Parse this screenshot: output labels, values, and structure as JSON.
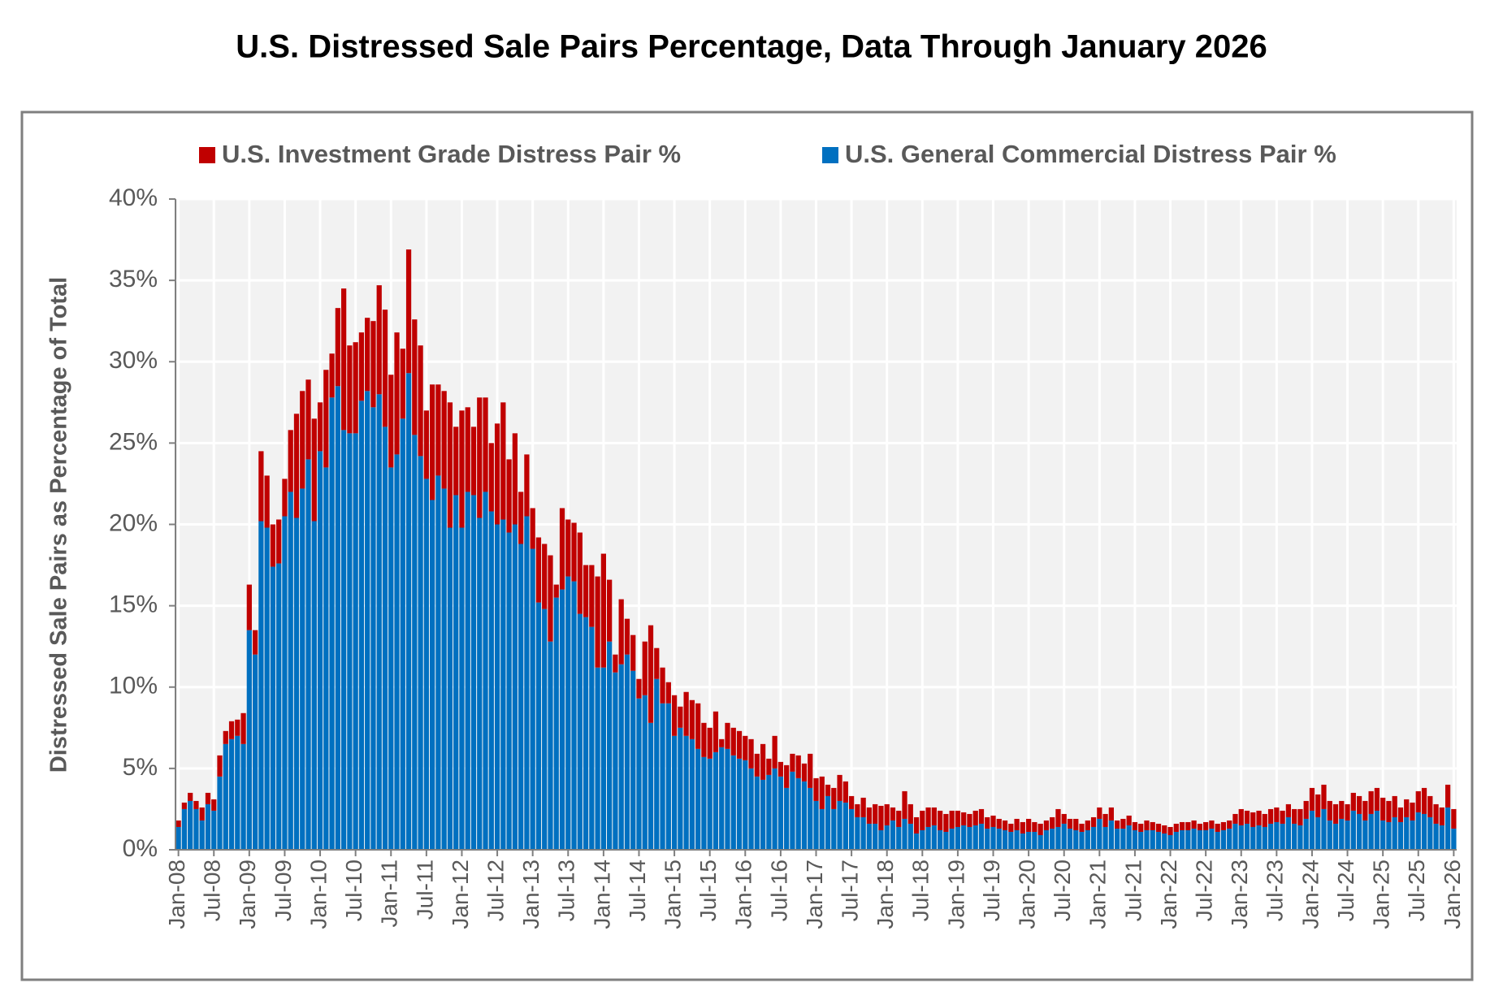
{
  "chart_data": {
    "type": "stacked_bar",
    "title": "U.S. Distressed Sale Pairs Percentage, Data Through January 2026",
    "y_label": "Distressed Sale Pairs as Percentage of Total",
    "categories": [
      "Jan-08",
      null,
      null,
      null,
      null,
      null,
      "Jul-08",
      null,
      null,
      null,
      null,
      null,
      "Jan-09",
      null,
      null,
      null,
      null,
      null,
      "Jul-09",
      null,
      null,
      null,
      null,
      null,
      "Jan-10",
      null,
      null,
      null,
      null,
      null,
      "Jul-10",
      null,
      null,
      null,
      null,
      null,
      "Jan-11",
      null,
      null,
      null,
      null,
      null,
      "Jul-11",
      null,
      null,
      null,
      null,
      null,
      "Jan-12",
      null,
      null,
      null,
      null,
      null,
      "Jul-12",
      null,
      null,
      null,
      null,
      null,
      "Jan-13",
      null,
      null,
      null,
      null,
      null,
      "Jul-13",
      null,
      null,
      null,
      null,
      null,
      "Jan-14",
      null,
      null,
      null,
      null,
      null,
      "Jul-14",
      null,
      null,
      null,
      null,
      null,
      "Jan-15",
      null,
      null,
      null,
      null,
      null,
      "Jul-15",
      null,
      null,
      null,
      null,
      null,
      "Jan-16",
      null,
      null,
      null,
      null,
      null,
      "Jul-16",
      null,
      null,
      null,
      null,
      null,
      "Jan-17",
      null,
      null,
      null,
      null,
      null,
      "Jul-17",
      null,
      null,
      null,
      null,
      null,
      "Jan-18",
      null,
      null,
      null,
      null,
      null,
      "Jul-18",
      null,
      null,
      null,
      null,
      null,
      "Jan-19",
      null,
      null,
      null,
      null,
      null,
      "Jul-19",
      null,
      null,
      null,
      null,
      null,
      "Jan-20",
      null,
      null,
      null,
      null,
      null,
      "Jul-20",
      null,
      null,
      null,
      null,
      null,
      "Jan-21",
      null,
      null,
      null,
      null,
      null,
      "Jul-21",
      null,
      null,
      null,
      null,
      null,
      "Jan-22",
      null,
      null,
      null,
      null,
      null,
      "Jul-22",
      null,
      null,
      null,
      null,
      null,
      "Jan-23",
      null,
      null,
      null,
      null,
      null,
      "Jul-23",
      null,
      null,
      null,
      null,
      null,
      "Jan-24",
      null,
      null,
      null,
      null,
      null,
      "Jul-24",
      null,
      null,
      null,
      null,
      null,
      "Jan-25",
      null,
      null,
      null,
      null,
      null,
      "Jul-25",
      null,
      null,
      null,
      null,
      null,
      "Jan-26"
    ],
    "series": [
      {
        "name": "U.S. Investment Grade Distress Pair %",
        "color": "#c00000",
        "values": [
          0.4,
          0.4,
          0.5,
          0.5,
          0.8,
          0.7,
          0.7,
          1.3,
          0.8,
          1.1,
          1.0,
          1.9,
          2.8,
          1.5,
          4.3,
          3.2,
          2.6,
          2.7,
          2.3,
          3.8,
          6.4,
          6.0,
          4.9,
          6.3,
          3.0,
          6.0,
          2.7,
          4.8,
          8.7,
          5.4,
          5.6,
          4.2,
          4.5,
          5.3,
          6.7,
          7.2,
          5.7,
          7.5,
          4.3,
          7.6,
          7.1,
          6.8,
          4.2,
          7.1,
          5.6,
          6.0,
          7.7,
          4.2,
          7.2,
          5.2,
          4.2,
          7.4,
          5.8,
          4.2,
          6.2,
          7.2,
          4.5,
          5.6,
          3.2,
          3.8,
          2.5,
          4.0,
          4.0,
          5.3,
          0.8,
          5.0,
          3.5,
          3.6,
          5.0,
          3.2,
          3.8,
          5.6,
          7.0,
          3.8,
          1.1,
          4.0,
          2.2,
          2.2,
          1.2,
          3.3,
          6.0,
          1.9,
          2.2,
          1.3,
          2.5,
          1.3,
          2.7,
          2.4,
          2.8,
          2.1,
          1.9,
          2.5,
          0.5,
          1.6,
          1.7,
          1.7,
          1.5,
          1.8,
          1.4,
          2.2,
          1.0,
          2.0,
          0.9,
          1.4,
          1.1,
          1.4,
          1.1,
          2.1,
          1.4,
          2.0,
          0.7,
          1.3,
          1.6,
          1.3,
          0.8,
          0.8,
          1.2,
          1.0,
          1.2,
          1.5,
          1.3,
          0.8,
          1.0,
          1.7,
          1.2,
          1.0,
          1.2,
          1.2,
          1.1,
          1.2,
          1.1,
          1.1,
          1.0,
          0.8,
          0.8,
          0.9,
          0.9,
          0.7,
          0.7,
          0.6,
          0.6,
          0.5,
          0.7,
          0.7,
          0.8,
          0.6,
          0.7,
          0.6,
          0.7,
          1.1,
          0.6,
          0.6,
          0.7,
          0.5,
          0.6,
          0.6,
          0.7,
          0.8,
          0.8,
          0.5,
          0.6,
          0.6,
          0.5,
          0.5,
          0.6,
          0.5,
          0.5,
          0.5,
          0.5,
          0.5,
          0.5,
          0.5,
          0.5,
          0.4,
          0.5,
          0.5,
          0.5,
          0.5,
          0.5,
          0.6,
          1.0,
          0.8,
          0.9,
          0.9,
          0.8,
          0.9,
          0.9,
          0.8,
          0.8,
          0.9,
          1.0,
          1.1,
          1.4,
          1.4,
          1.5,
          1.2,
          1.2,
          1.1,
          1.0,
          1.1,
          1.1,
          1.2,
          1.4,
          1.4,
          1.4,
          1.3,
          1.3,
          0.9,
          1.1,
          1.1,
          1.3,
          1.6,
          1.3,
          1.2,
          1.1,
          1.4,
          1.2
        ]
      },
      {
        "name": "U.S. General Commercial Distress Pair %",
        "color": "#0070c0",
        "values": [
          1.4,
          2.5,
          3.0,
          2.5,
          1.8,
          2.8,
          2.4,
          4.5,
          6.5,
          6.8,
          7.0,
          6.5,
          13.5,
          12.0,
          20.2,
          19.8,
          17.4,
          17.6,
          20.5,
          22.0,
          20.4,
          22.2,
          24.0,
          20.2,
          24.5,
          23.5,
          27.8,
          28.5,
          25.8,
          25.6,
          25.6,
          27.6,
          28.2,
          27.2,
          28.0,
          26.0,
          23.5,
          24.3,
          26.5,
          29.3,
          25.5,
          24.2,
          22.8,
          21.5,
          23.0,
          22.2,
          19.8,
          21.8,
          19.8,
          22.0,
          21.8,
          20.4,
          22.0,
          20.8,
          20.0,
          20.3,
          19.5,
          20.0,
          18.8,
          20.5,
          18.5,
          15.2,
          14.8,
          12.8,
          15.5,
          16.0,
          16.8,
          16.5,
          14.5,
          14.3,
          13.7,
          11.2,
          11.2,
          12.8,
          10.9,
          11.4,
          12.0,
          11.0,
          9.3,
          9.5,
          7.8,
          10.5,
          9.0,
          9.0,
          7.0,
          7.5,
          7.0,
          6.8,
          6.2,
          5.7,
          5.6,
          6.0,
          6.3,
          6.2,
          5.8,
          5.6,
          5.5,
          5.0,
          4.5,
          4.3,
          4.6,
          5.0,
          4.5,
          3.8,
          4.8,
          4.4,
          4.2,
          3.8,
          3.0,
          2.5,
          3.3,
          2.5,
          3.0,
          2.9,
          2.5,
          2.0,
          2.0,
          1.6,
          1.6,
          1.2,
          1.5,
          1.8,
          1.4,
          1.9,
          1.6,
          1.0,
          1.2,
          1.4,
          1.5,
          1.2,
          1.1,
          1.3,
          1.4,
          1.5,
          1.4,
          1.5,
          1.6,
          1.3,
          1.4,
          1.3,
          1.2,
          1.1,
          1.2,
          1.0,
          1.1,
          1.1,
          0.9,
          1.2,
          1.3,
          1.4,
          1.6,
          1.3,
          1.2,
          1.1,
          1.2,
          1.4,
          1.9,
          1.4,
          1.8,
          1.3,
          1.3,
          1.5,
          1.2,
          1.1,
          1.2,
          1.2,
          1.1,
          1.0,
          0.9,
          1.1,
          1.2,
          1.2,
          1.3,
          1.2,
          1.2,
          1.3,
          1.1,
          1.2,
          1.3,
          1.6,
          1.5,
          1.6,
          1.4,
          1.5,
          1.4,
          1.6,
          1.7,
          1.6,
          2.0,
          1.6,
          1.5,
          1.9,
          2.4,
          2.0,
          2.5,
          1.8,
          1.6,
          1.9,
          1.8,
          2.4,
          2.2,
          1.8,
          2.2,
          2.4,
          1.8,
          1.7,
          2.0,
          1.7,
          2.0,
          1.8,
          2.3,
          2.2,
          2.0,
          1.6,
          1.5,
          2.6,
          1.3
        ]
      }
    ],
    "ylim": [
      0,
      40
    ],
    "yticks": [
      {
        "value": 0,
        "label": "0%"
      },
      {
        "value": 5,
        "label": "5%"
      },
      {
        "value": 10,
        "label": "10%"
      },
      {
        "value": 15,
        "label": "15%"
      },
      {
        "value": 20,
        "label": "20%"
      },
      {
        "value": 25,
        "label": "25%"
      },
      {
        "value": 30,
        "label": "30%"
      },
      {
        "value": 35,
        "label": "35%"
      },
      {
        "value": 40,
        "label": "40%"
      }
    ],
    "grid": true
  }
}
